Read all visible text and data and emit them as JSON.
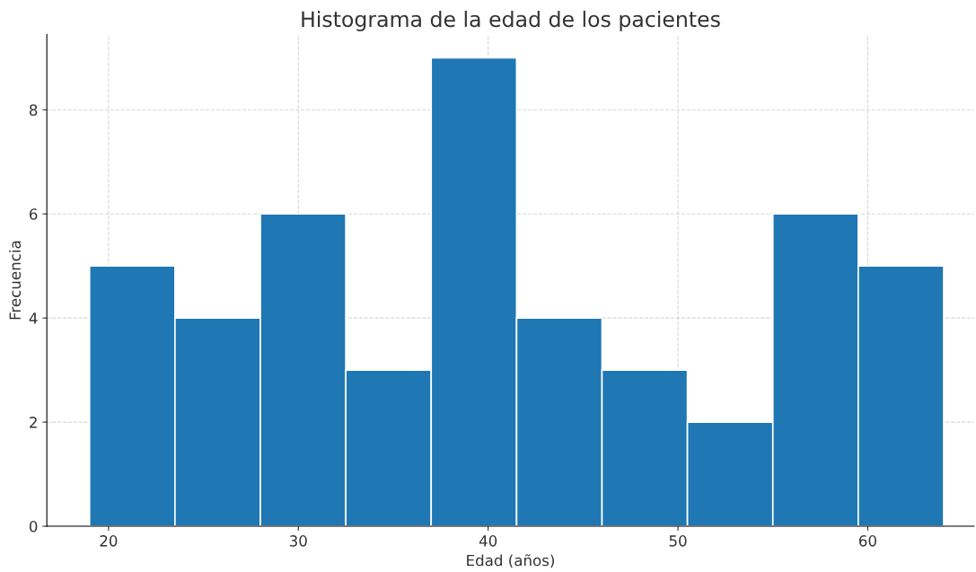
{
  "chart_data": {
    "type": "histogram",
    "title": "Histograma de la edad de los pacientes",
    "xlabel": "Edad (años)",
    "ylabel": "Frecuencia",
    "bins": [
      19,
      23.5,
      28,
      32.5,
      37,
      41.5,
      46,
      50.5,
      55,
      59.5,
      64
    ],
    "values": [
      5,
      4,
      6,
      3,
      9,
      4,
      3,
      2,
      6,
      5
    ],
    "color": "#1f77b4",
    "xlim": [
      16.75,
      65.6
    ],
    "xticks": [
      20,
      30,
      40,
      50,
      60
    ],
    "ylim": [
      0,
      9.45
    ],
    "yticks": [
      0,
      2,
      4,
      6,
      8
    ],
    "grid": true
  }
}
